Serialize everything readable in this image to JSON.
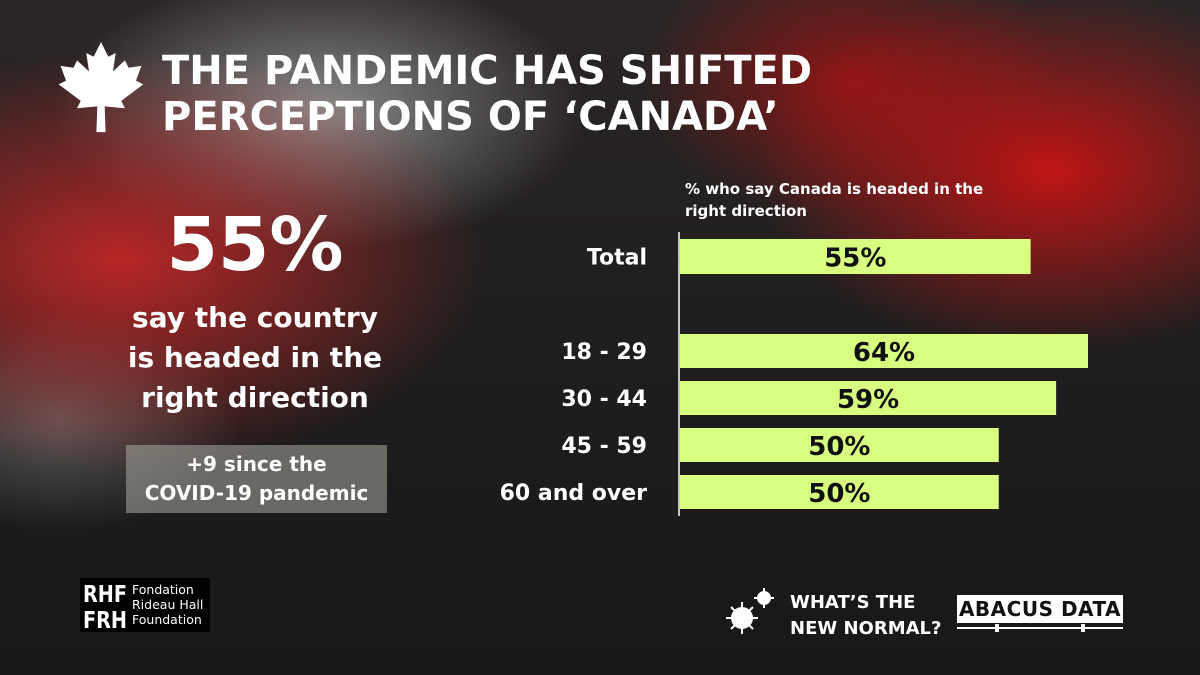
{
  "title": {
    "line1": "THE PANDEMIC HAS SHIFTED",
    "line2": "PERCEPTIONS OF ‘CANADA’"
  },
  "headline": {
    "value": "55%",
    "desc_line1": "say the country",
    "desc_line2": "is headed in the",
    "desc_line3": "right direction",
    "since_line1": "+9 since the",
    "since_line2": "COVID-19 pandemic"
  },
  "chart_data": {
    "type": "bar",
    "orientation": "horizontal",
    "subtitle_line1": "% who say Canada is headed in the",
    "subtitle_line2": "right direction",
    "categories": [
      "Total",
      "18 - 29",
      "30 - 44",
      "45 - 59",
      "60 and over"
    ],
    "values": [
      55,
      64,
      59,
      50,
      50
    ],
    "value_labels": [
      "55%",
      "64%",
      "59%",
      "50%",
      "50%"
    ],
    "xlim": [
      0,
      64
    ],
    "bar_color": "#d9ff80",
    "grid": false,
    "legend": "none"
  },
  "logos": {
    "rhf_mark": "RHF FRH",
    "rhf_line1": "Fondation",
    "rhf_line2": "Rideau Hall",
    "rhf_line3": "Foundation",
    "wtn_line1": "WHAT’S THE",
    "wtn_line2": "NEW NORMAL?",
    "abacus": "ABACUS DATA"
  },
  "colors": {
    "bar": "#d9ff80",
    "text": "#ffffff",
    "background": "#1e1c1c"
  },
  "icons": {
    "leaf": "maple-leaf-icon",
    "virus": "virus-icon"
  }
}
